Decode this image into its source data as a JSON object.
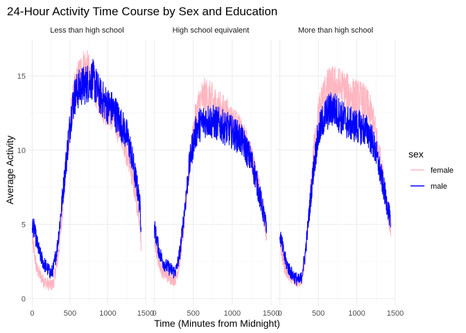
{
  "chart_data": {
    "type": "line",
    "title": "24-Hour Activity Time Course by Sex and Education",
    "xlabel": "Time (Minutes from Midnight)",
    "ylabel": "Average Activity",
    "xlim": [
      0,
      1440
    ],
    "ylim": [
      0,
      17
    ],
    "x_ticks": [
      0,
      500,
      1000,
      1500
    ],
    "y_ticks": [
      0,
      5,
      10,
      15
    ],
    "x_tick_labels": [
      "0",
      "500",
      "1000",
      "1500"
    ],
    "y_tick_labels": [
      "0",
      "5",
      "10",
      "15"
    ],
    "grid": true,
    "legend": {
      "title": "sex",
      "position": "right",
      "entries": [
        {
          "label": "female",
          "color": "#ffb6c1"
        },
        {
          "label": "male",
          "color": "#0000ff"
        }
      ]
    },
    "panels": [
      {
        "label": "Less than high school",
        "series": [
          {
            "name": "female",
            "color": "#ffb6c1",
            "x": [
              0,
              30,
              60,
              100,
              150,
              200,
              250,
              280,
              300,
              330,
              360,
              400,
              440,
              480,
              520,
              560,
              600,
              650,
              700,
              750,
              800,
              850,
              900,
              950,
              1000,
              1050,
              1100,
              1150,
              1200,
              1250,
              1300,
              1350,
              1400,
              1430,
              1440
            ],
            "y": [
              4.0,
              3.0,
              2.0,
              1.6,
              1.2,
              1.0,
              0.9,
              1.0,
              1.6,
              2.4,
              3.6,
              6.0,
              8.5,
              10.6,
              12.6,
              13.8,
              14.6,
              15.3,
              15.6,
              15.1,
              14.7,
              14.0,
              13.5,
              13.0,
              12.8,
              12.5,
              12.0,
              11.5,
              11.0,
              10.0,
              9.0,
              7.5,
              6.0,
              4.5,
              3.2
            ]
          },
          {
            "name": "male",
            "color": "#0000ff",
            "x": [
              0,
              30,
              60,
              100,
              150,
              200,
              250,
              280,
              300,
              330,
              360,
              400,
              440,
              480,
              520,
              560,
              600,
              650,
              700,
              750,
              800,
              850,
              900,
              950,
              1000,
              1050,
              1100,
              1150,
              1200,
              1250,
              1300,
              1350,
              1400,
              1430,
              1440
            ],
            "y": [
              5.0,
              4.6,
              3.8,
              3.0,
              2.4,
              2.0,
              1.7,
              2.0,
              2.6,
              3.4,
              4.8,
              6.8,
              8.8,
              10.8,
              12.6,
              13.6,
              14.0,
              14.3,
              14.4,
              14.6,
              14.8,
              14.2,
              13.6,
              13.3,
              13.0,
              12.8,
              12.5,
              12.0,
              11.5,
              11.0,
              10.0,
              8.6,
              7.2,
              6.0,
              4.8
            ]
          }
        ]
      },
      {
        "label": "High school equivalent",
        "series": [
          {
            "name": "female",
            "color": "#ffb6c1",
            "x": [
              0,
              30,
              60,
              100,
              150,
              200,
              250,
              280,
              300,
              330,
              360,
              400,
              440,
              480,
              520,
              560,
              600,
              650,
              700,
              750,
              800,
              850,
              900,
              950,
              1000,
              1050,
              1100,
              1150,
              1200,
              1250,
              1300,
              1350,
              1400,
              1430,
              1440
            ],
            "y": [
              4.2,
              3.2,
              2.4,
              1.9,
              1.6,
              1.4,
              1.3,
              1.4,
              1.9,
              2.7,
              4.0,
              6.2,
              8.4,
              10.2,
              11.8,
              12.8,
              13.4,
              13.6,
              13.5,
              13.2,
              13.0,
              12.7,
              12.5,
              12.2,
              11.9,
              11.6,
              11.2,
              10.7,
              10.2,
              9.4,
              8.4,
              7.2,
              5.8,
              4.8,
              4.0
            ]
          },
          {
            "name": "male",
            "color": "#0000ff",
            "x": [
              0,
              30,
              60,
              100,
              150,
              200,
              250,
              280,
              300,
              330,
              360,
              400,
              440,
              480,
              520,
              560,
              600,
              650,
              700,
              750,
              800,
              850,
              900,
              950,
              1000,
              1050,
              1100,
              1150,
              1200,
              1250,
              1300,
              1350,
              1400,
              1430,
              1440
            ],
            "y": [
              4.8,
              4.0,
              3.2,
              2.6,
              2.2,
              2.0,
              1.8,
              1.9,
              2.4,
              3.2,
              4.6,
              6.6,
              8.6,
              10.0,
              11.0,
              11.6,
              11.8,
              12.0,
              12.0,
              11.9,
              11.8,
              11.7,
              11.5,
              11.4,
              11.2,
              11.0,
              10.8,
              10.4,
              9.8,
              9.2,
              8.2,
              7.0,
              5.8,
              5.0,
              4.4
            ]
          }
        ]
      },
      {
        "label": "More than high school",
        "series": [
          {
            "name": "female",
            "color": "#ffb6c1",
            "x": [
              0,
              30,
              60,
              100,
              150,
              200,
              250,
              280,
              300,
              330,
              360,
              400,
              440,
              480,
              520,
              560,
              600,
              650,
              700,
              750,
              800,
              850,
              900,
              950,
              1000,
              1050,
              1100,
              1150,
              1200,
              1250,
              1300,
              1350,
              1400,
              1430,
              1440
            ],
            "y": [
              4.0,
              3.0,
              2.2,
              1.7,
              1.4,
              1.2,
              1.1,
              1.2,
              1.8,
              2.8,
              4.4,
              7.2,
              9.8,
              11.6,
              12.8,
              13.6,
              14.0,
              14.3,
              14.4,
              14.3,
              14.2,
              14.0,
              13.8,
              13.6,
              13.5,
              13.4,
              13.2,
              12.8,
              12.2,
              11.0,
              9.4,
              7.8,
              6.2,
              5.0,
              4.2
            ]
          },
          {
            "name": "male",
            "color": "#0000ff",
            "x": [
              0,
              30,
              60,
              100,
              150,
              200,
              250,
              280,
              300,
              330,
              360,
              400,
              440,
              480,
              520,
              560,
              600,
              650,
              700,
              750,
              800,
              850,
              900,
              950,
              1000,
              1050,
              1100,
              1150,
              1200,
              1250,
              1300,
              1350,
              1400,
              1430,
              1440
            ],
            "y": [
              4.4,
              3.6,
              2.8,
              2.2,
              1.7,
              1.4,
              1.2,
              1.4,
              2.0,
              3.0,
              4.6,
              6.8,
              8.8,
              10.4,
              11.4,
              12.0,
              12.4,
              12.7,
              12.8,
              12.5,
              12.2,
              12.0,
              11.8,
              11.7,
              11.6,
              11.5,
              11.4,
              11.2,
              10.6,
              9.8,
              8.6,
              7.4,
              6.2,
              5.4,
              4.8
            ]
          }
        ]
      }
    ]
  }
}
